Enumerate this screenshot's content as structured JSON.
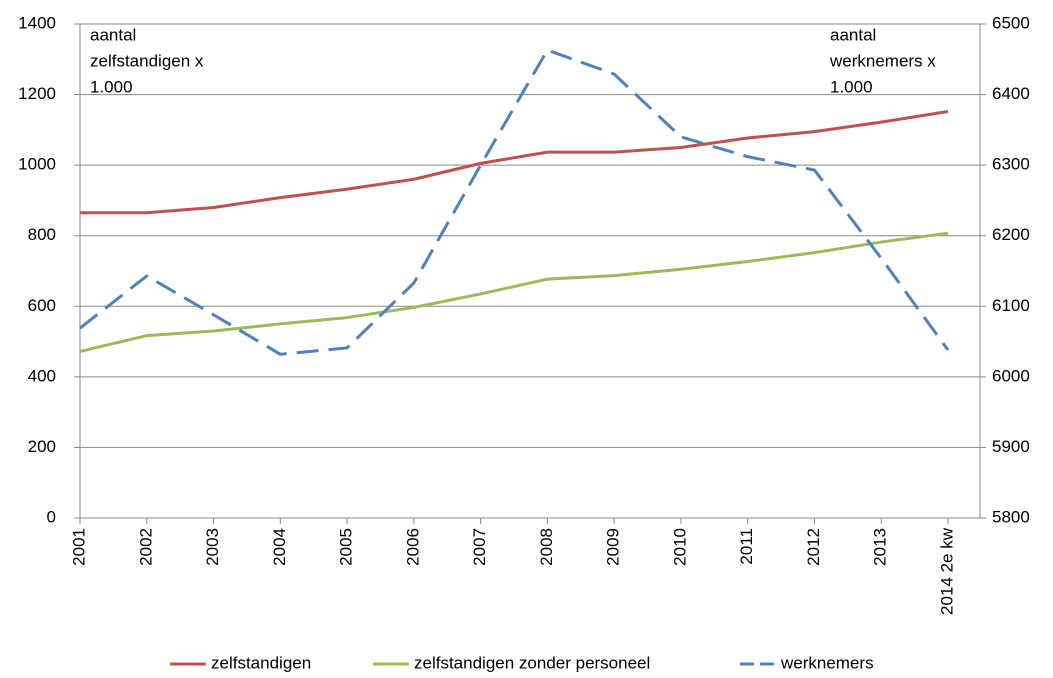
{
  "chart_data": {
    "type": "line",
    "annotations": [
      [
        "aantal",
        "zelfstandigen x",
        "1.000"
      ],
      [
        "aantal",
        "werknemers x",
        "1.000"
      ]
    ],
    "categories": [
      "2001",
      "2002",
      "2003",
      "2004",
      "2005",
      "2006",
      "2007",
      "2008",
      "2009",
      "2010",
      "2011",
      "2012",
      "2013",
      "2014 2e kw"
    ],
    "series": [
      {
        "name": "zelfstandigen",
        "color": "#c0504d",
        "values": [
          865,
          865,
          880,
          908,
          932,
          960,
          1005,
          1037,
          1037,
          1050,
          1077,
          1095,
          1122,
          1152
        ]
      },
      {
        "name": "zelfstandigen zonder personeel",
        "color": "#9bbb59",
        "values": [
          472,
          517,
          530,
          550,
          568,
          597,
          635,
          677,
          687,
          705,
          727,
          752,
          782,
          807
        ]
      },
      {
        "name": "werknemers",
        "color": "#4f81bd",
        "axis": "y2",
        "dashed": true,
        "values": [
          6069,
          6143,
          6088,
          6032,
          6041,
          6133,
          6300,
          6463,
          6429,
          6340,
          6312,
          6293,
          6168,
          6038
        ]
      }
    ],
    "ylim": [
      0,
      1400
    ],
    "yticks": [
      0,
      200,
      400,
      600,
      800,
      1000,
      1200,
      1400
    ],
    "y2lim": [
      5800,
      6500
    ],
    "y2ticks": [
      5800,
      5900,
      6000,
      6100,
      6200,
      6300,
      6400,
      6500
    ],
    "grid": true,
    "legend": "bottom"
  }
}
